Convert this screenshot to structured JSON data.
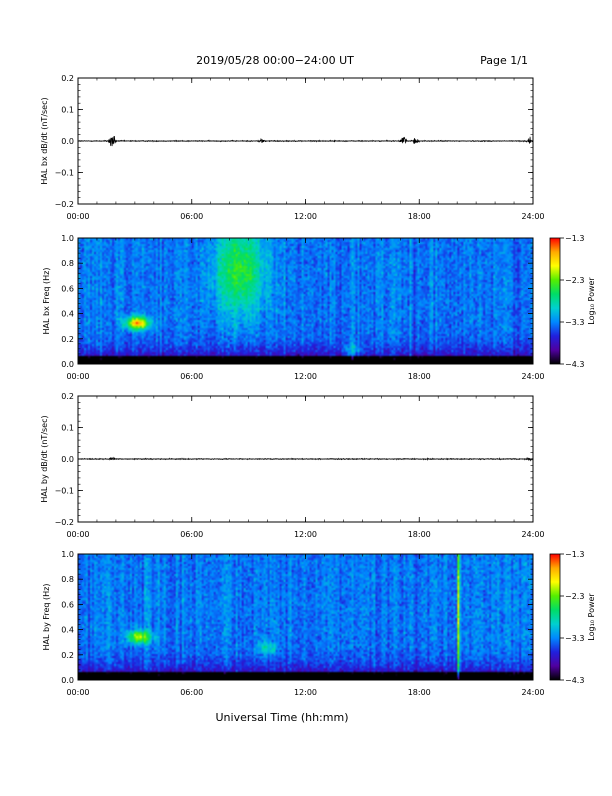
{
  "header": {
    "title": "2019/05/28  00:00−24:00 UT",
    "page": "Page 1/1"
  },
  "x_axis": {
    "label": "Universal Time (hh:mm)",
    "ticks": [
      "00:00",
      "06:00",
      "12:00",
      "18:00",
      "24:00"
    ],
    "range_hours": [
      0,
      24
    ]
  },
  "colorbar": {
    "label": "Log₁₀ Power",
    "ticks": [
      "−1.3",
      "−2.3",
      "−3.3",
      "−4.3"
    ],
    "range": [
      -4.3,
      -1.3
    ],
    "stops": [
      "#ff0000",
      "#ffaa00",
      "#ffff00",
      "#55ee00",
      "#00dd66",
      "#00d0d0",
      "#0088ff",
      "#2020dd",
      "#5000a0",
      "#000000"
    ]
  },
  "chart_data": [
    {
      "type": "line",
      "name": "HAL bx dB/dt",
      "ylabel": "HAL bx dB/dt (nT/sec)",
      "ylim": [
        -0.2,
        0.2
      ],
      "yticks": [
        "0.2",
        "0.1",
        "0.0",
        "−0.1",
        "−0.2"
      ],
      "xlim": [
        0,
        24
      ],
      "baseline": 0.0,
      "bursts": [
        {
          "t": 1.8,
          "amp": 0.045
        },
        {
          "t": 9.7,
          "amp": 0.01
        },
        {
          "t": 17.2,
          "amp": 0.035
        },
        {
          "t": 17.8,
          "amp": 0.012
        },
        {
          "t": 23.8,
          "amp": 0.015
        }
      ]
    },
    {
      "type": "heatmap",
      "name": "HAL bx spectrogram",
      "ylabel": "HAL bx Freq (Hz)",
      "ylim": [
        0.0,
        1.0
      ],
      "yticks": [
        "1.0",
        "0.8",
        "0.6",
        "0.4",
        "0.2",
        "0.0"
      ],
      "xlim": [
        0,
        24
      ],
      "zlim": [
        -4.3,
        -1.3
      ],
      "features": [
        {
          "t": 3.1,
          "f": 0.32,
          "log_power": -1.6
        },
        {
          "t": 8.5,
          "f": 0.75,
          "log_power": -2.4
        },
        {
          "t": 14.5,
          "f": 0.1,
          "log_power": -3.0
        }
      ]
    },
    {
      "type": "line",
      "name": "HAL by dB/dt",
      "ylabel": "HAL by dB/dt (nT/sec)",
      "ylim": [
        -0.2,
        0.2
      ],
      "yticks": [
        "0.2",
        "0.1",
        "0.0",
        "−0.1",
        "−0.2"
      ],
      "xlim": [
        0,
        24
      ],
      "baseline": 0.0,
      "bursts": [
        {
          "t": 1.8,
          "amp": 0.006
        },
        {
          "t": 23.8,
          "amp": 0.005
        }
      ]
    },
    {
      "type": "heatmap",
      "name": "HAL by spectrogram",
      "ylabel": "HAL by Freq (Hz)",
      "ylim": [
        0.0,
        1.0
      ],
      "yticks": [
        "1.0",
        "0.8",
        "0.6",
        "0.4",
        "0.2",
        "0.0"
      ],
      "xlim": [
        0,
        24
      ],
      "zlim": [
        -4.3,
        -1.3
      ],
      "features": [
        {
          "t": 3.2,
          "f": 0.34,
          "log_power": -2.0
        },
        {
          "t": 10.0,
          "f": 0.25,
          "log_power": -3.0
        },
        {
          "t": 20.1,
          "f": 0.5,
          "log_power": -2.5
        }
      ]
    }
  ]
}
